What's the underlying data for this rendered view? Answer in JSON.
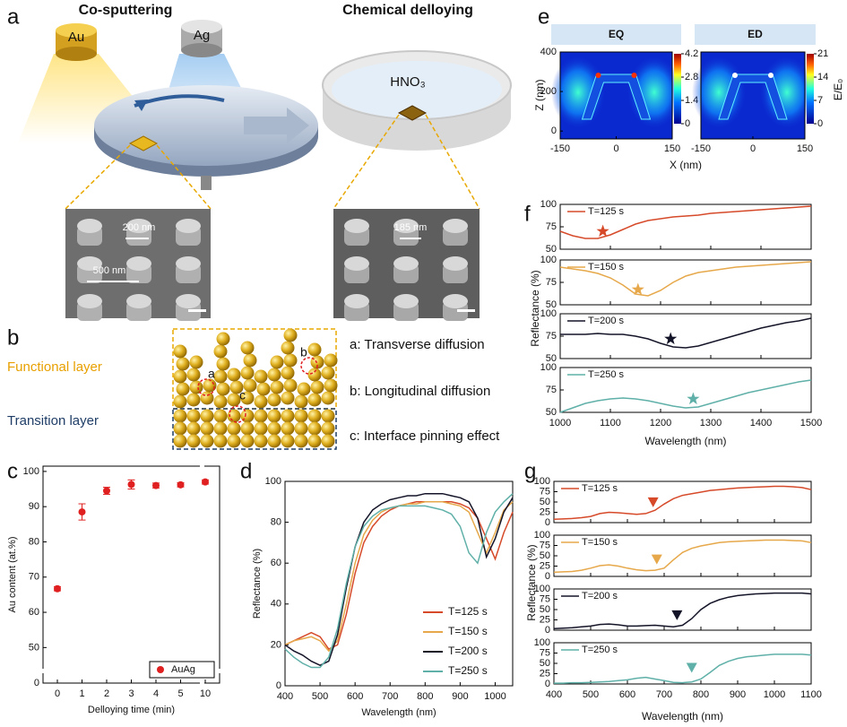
{
  "panel_labels": [
    "a",
    "b",
    "c",
    "d",
    "e",
    "f",
    "g"
  ],
  "panel_a": {
    "left_title": "Co-sputtering",
    "right_title": "Chemical delloying",
    "targets": [
      "Au",
      "Ag"
    ],
    "solution": "HNO₃",
    "scales": [
      "200 nm",
      "500 nm",
      "185 nm"
    ]
  },
  "panel_b": {
    "layers": [
      "Functional layer",
      "Transition layer"
    ],
    "markers": [
      "a",
      "b",
      "c"
    ],
    "legend": [
      "a: Transverse diffusion",
      "b: Longitudinal diffusion",
      "c: Interface pinning effect"
    ]
  },
  "chart_data": [
    {
      "type": "scatter",
      "xlabel": "Delloying time (min)",
      "ylabel": "Au content (at.%)",
      "categories": [
        "0",
        "1",
        "2",
        "3",
        "4",
        "5",
        "10"
      ],
      "values": [
        66.7,
        88.5,
        94.5,
        96.3,
        96.0,
        96.2,
        97.0
      ],
      "errors": [
        0.6,
        2.3,
        1.0,
        1.3,
        0.7,
        0.6,
        0.6
      ],
      "ylim": [
        0,
        101.5
      ],
      "yticks": [
        0,
        50,
        60,
        70,
        80,
        90,
        100
      ],
      "axis_break": [
        5,
        45
      ],
      "name": "AuAg",
      "color": "#e02020",
      "legend": "lower right"
    },
    {
      "type": "line",
      "xlabel": "Wavelength (nm)",
      "ylabel": "Reflectance (%)",
      "xlim": [
        400,
        1050
      ],
      "xticks": [
        400,
        500,
        600,
        700,
        800,
        900,
        1000
      ],
      "ylim": [
        0,
        100
      ],
      "yticks": [
        0,
        20,
        40,
        60,
        80,
        100
      ],
      "legend": "lower right",
      "x": [
        400,
        425,
        450,
        475,
        500,
        525,
        550,
        575,
        600,
        625,
        650,
        675,
        700,
        725,
        750,
        775,
        800,
        825,
        850,
        875,
        900,
        925,
        950,
        975,
        1000,
        1025,
        1050
      ],
      "series": [
        {
          "name": "T=125 s",
          "color": "#d64a2a",
          "values": [
            20,
            22,
            24,
            26,
            24,
            18,
            20,
            35,
            55,
            70,
            78,
            83,
            86,
            88,
            89,
            90,
            90,
            90,
            90,
            90,
            89,
            87,
            82,
            72,
            62,
            75,
            85
          ]
        },
        {
          "name": "T=150 s",
          "color": "#e6a84a",
          "values": [
            20,
            22,
            23,
            24,
            22,
            17,
            22,
            40,
            60,
            74,
            81,
            85,
            87,
            88,
            89,
            89,
            90,
            90,
            90,
            89,
            88,
            85,
            75,
            65,
            75,
            86,
            90
          ]
        },
        {
          "name": "T=200 s",
          "color": "#141428",
          "values": [
            20,
            17,
            15,
            12,
            10,
            12,
            25,
            48,
            68,
            80,
            86,
            89,
            91,
            92,
            93,
            93,
            94,
            94,
            94,
            93,
            92,
            90,
            82,
            63,
            72,
            85,
            92
          ]
        },
        {
          "name": "T=250 s",
          "color": "#5fb0a8",
          "values": [
            18,
            14,
            11,
            9,
            9,
            14,
            28,
            50,
            68,
            78,
            83,
            86,
            87,
            88,
            88,
            88,
            88,
            87,
            86,
            84,
            78,
            65,
            60,
            75,
            85,
            90,
            94
          ]
        }
      ]
    },
    {
      "type": "heatmap",
      "xlabel": "X (nm)",
      "ylabel": "Z (nm)",
      "colorbar_label": "E/E₀",
      "xlim": [
        -150,
        150
      ],
      "xticks": [
        -150,
        0,
        150
      ],
      "ylim": [
        -40,
        400
      ],
      "yticks": [
        0,
        200,
        400
      ],
      "maps": [
        {
          "title": "EQ",
          "colorbar_lim": [
            0,
            4.2
          ],
          "colorbar_ticks": [
            0,
            1.4,
            2.8,
            4.2
          ]
        },
        {
          "title": "ED",
          "colorbar_lim": [
            0,
            21
          ],
          "colorbar_ticks": [
            0,
            7,
            14,
            21
          ]
        }
      ]
    },
    {
      "type": "line",
      "xlabel": "Wavelength (nm)",
      "ylabel": "Reflectance (%)",
      "xlim": [
        1000,
        1500
      ],
      "xticks": [
        1000,
        1100,
        1200,
        1300,
        1400,
        1500
      ],
      "ylim": [
        50,
        100
      ],
      "yticks": [
        50,
        75,
        100
      ],
      "marker": "star",
      "x": [
        1000,
        1025,
        1050,
        1075,
        1100,
        1125,
        1150,
        1175,
        1200,
        1225,
        1250,
        1275,
        1300,
        1325,
        1350,
        1375,
        1400,
        1425,
        1450,
        1475,
        1500
      ],
      "series": [
        {
          "name": "T=125 s",
          "color": "#d64a2a",
          "marker_x": 1085,
          "marker_y": 70,
          "values": [
            70,
            65,
            62,
            62,
            66,
            72,
            78,
            82,
            84,
            86,
            87,
            88,
            90,
            91,
            92,
            93,
            94,
            95,
            96,
            97,
            98
          ]
        },
        {
          "name": "T=150 s",
          "color": "#e6a84a",
          "marker_x": 1155,
          "marker_y": 67,
          "values": [
            92,
            90,
            88,
            85,
            80,
            72,
            62,
            60,
            66,
            75,
            82,
            86,
            88,
            90,
            92,
            93,
            94,
            95,
            96,
            97,
            98
          ]
        },
        {
          "name": "T=200 s",
          "color": "#141428",
          "marker_x": 1220,
          "marker_y": 72,
          "values": [
            77,
            77,
            77,
            78,
            77,
            77,
            75,
            72,
            67,
            63,
            62,
            64,
            68,
            72,
            76,
            80,
            84,
            87,
            90,
            92,
            95
          ]
        },
        {
          "name": "T=250 s",
          "color": "#5fb0a8",
          "marker_x": 1265,
          "marker_y": 65,
          "values": [
            50,
            55,
            60,
            63,
            65,
            66,
            65,
            63,
            60,
            57,
            55,
            56,
            60,
            64,
            68,
            72,
            75,
            78,
            81,
            84,
            86
          ]
        }
      ]
    },
    {
      "type": "line",
      "xlabel": "Wavelength (nm)",
      "ylabel": "Reflectance (%)",
      "xlim": [
        400,
        1100
      ],
      "xticks": [
        400,
        500,
        600,
        700,
        800,
        900,
        1000,
        1100
      ],
      "ylim": [
        0,
        100
      ],
      "yticks": [
        0,
        25,
        50,
        75,
        100
      ],
      "marker": "triangle",
      "x": [
        400,
        425,
        450,
        475,
        500,
        525,
        550,
        575,
        600,
        625,
        650,
        675,
        700,
        725,
        750,
        775,
        800,
        825,
        850,
        875,
        900,
        925,
        950,
        975,
        1000,
        1025,
        1050,
        1075,
        1100
      ],
      "series": [
        {
          "name": "T=125 s",
          "color": "#d64a2a",
          "marker_x": 670,
          "marker_y": 48,
          "values": [
            8,
            9,
            10,
            12,
            15,
            22,
            25,
            24,
            22,
            20,
            22,
            30,
            45,
            58,
            66,
            70,
            74,
            78,
            80,
            82,
            84,
            85,
            86,
            87,
            88,
            88,
            87,
            85,
            80
          ]
        },
        {
          "name": "T=150 s",
          "color": "#e6a84a",
          "marker_x": 680,
          "marker_y": 40,
          "values": [
            10,
            11,
            12,
            15,
            20,
            26,
            28,
            25,
            20,
            16,
            14,
            15,
            20,
            40,
            58,
            68,
            74,
            78,
            82,
            84,
            85,
            86,
            87,
            88,
            88,
            88,
            87,
            86,
            82
          ]
        },
        {
          "name": "T=200 s",
          "color": "#141428",
          "marker_x": 735,
          "marker_y": 35,
          "values": [
            4,
            5,
            6,
            8,
            10,
            14,
            15,
            13,
            10,
            10,
            11,
            12,
            10,
            8,
            12,
            28,
            50,
            65,
            74,
            80,
            84,
            86,
            88,
            89,
            90,
            90,
            90,
            90,
            88
          ]
        },
        {
          "name": "T=250 s",
          "color": "#5fb0a8",
          "marker_x": 775,
          "marker_y": 38,
          "values": [
            2,
            2,
            3,
            3,
            4,
            5,
            6,
            8,
            10,
            14,
            16,
            12,
            8,
            4,
            3,
            5,
            12,
            28,
            45,
            55,
            62,
            66,
            68,
            70,
            72,
            72,
            72,
            72,
            70
          ]
        }
      ]
    }
  ]
}
